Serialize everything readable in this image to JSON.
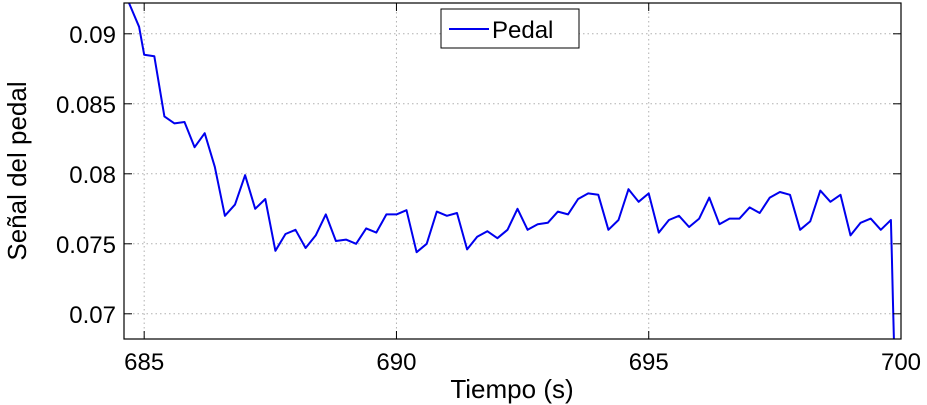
{
  "chart_data": {
    "type": "line",
    "title": "",
    "xlabel": "Tiempo (s)",
    "ylabel": "Señal del pedal",
    "xlim": [
      684.6,
      700.0
    ],
    "ylim": [
      0.0682,
      0.0922
    ],
    "xticks": [
      685,
      690,
      695,
      700
    ],
    "xtick_labels": [
      "685",
      "690",
      "695",
      "700"
    ],
    "yticks": [
      0.07,
      0.075,
      0.08,
      0.085,
      0.09
    ],
    "ytick_labels": [
      "0.07",
      "0.075",
      "0.08",
      "0.085",
      "0.09"
    ],
    "grid": true,
    "legend_position": "top-center",
    "colors": {
      "series": "#0000ee",
      "axis": "#000000",
      "grid": "#b0b0b0"
    },
    "series": [
      {
        "name": "Pedal",
        "x": [
          684.7,
          684.9,
          685.0,
          685.2,
          685.4,
          685.6,
          685.8,
          686.0,
          686.2,
          686.4,
          686.6,
          686.8,
          687.0,
          687.2,
          687.4,
          687.6,
          687.8,
          688.0,
          688.2,
          688.4,
          688.6,
          688.8,
          689.0,
          689.2,
          689.4,
          689.6,
          689.8,
          690.0,
          690.2,
          690.4,
          690.6,
          690.8,
          691.0,
          691.2,
          691.4,
          691.6,
          691.8,
          692.0,
          692.2,
          692.4,
          692.6,
          692.8,
          693.0,
          693.2,
          693.4,
          693.6,
          693.8,
          694.0,
          694.2,
          694.4,
          694.6,
          694.8,
          695.0,
          695.2,
          695.4,
          695.6,
          695.8,
          696.0,
          696.2,
          696.4,
          696.6,
          696.8,
          697.0,
          697.2,
          697.4,
          697.6,
          697.8,
          698.0,
          698.2,
          698.4,
          698.6,
          698.8,
          699.0,
          699.2,
          699.4,
          699.6,
          699.8,
          699.82,
          699.84,
          699.86
        ],
        "y": [
          0.0922,
          0.0905,
          0.0885,
          0.0884,
          0.0841,
          0.0836,
          0.0837,
          0.0819,
          0.0829,
          0.0805,
          0.077,
          0.0778,
          0.0799,
          0.0775,
          0.0782,
          0.0745,
          0.0757,
          0.076,
          0.0747,
          0.0756,
          0.0771,
          0.0752,
          0.0753,
          0.075,
          0.0761,
          0.0758,
          0.0771,
          0.0771,
          0.0774,
          0.0744,
          0.075,
          0.0773,
          0.077,
          0.0772,
          0.0746,
          0.0755,
          0.0759,
          0.0754,
          0.076,
          0.0775,
          0.076,
          0.0764,
          0.0765,
          0.0773,
          0.0771,
          0.0782,
          0.0786,
          0.0785,
          0.076,
          0.0767,
          0.0789,
          0.078,
          0.0786,
          0.0758,
          0.0767,
          0.077,
          0.0762,
          0.0768,
          0.0783,
          0.0764,
          0.0768,
          0.0768,
          0.0776,
          0.0772,
          0.0783,
          0.0787,
          0.0785,
          0.076,
          0.0766,
          0.0788,
          0.078,
          0.0785,
          0.0756,
          0.0765,
          0.0768,
          0.076,
          0.0767,
          0.074,
          0.071,
          0.0682
        ]
      }
    ]
  }
}
